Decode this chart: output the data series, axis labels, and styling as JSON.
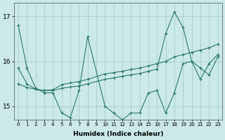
{
  "xlabel": "Humidex (Indice chaleur)",
  "background_color": "#cce8e8",
  "grid_color": "#aacccc",
  "line_color": "#2e7b6e",
  "xlim": [
    -0.5,
    23.5
  ],
  "ylim": [
    14.7,
    17.3
  ],
  "yticks": [
    15,
    16,
    17
  ],
  "xticks": [
    0,
    1,
    2,
    3,
    4,
    5,
    6,
    7,
    8,
    9,
    10,
    11,
    12,
    13,
    14,
    15,
    16,
    17,
    18,
    19,
    20,
    21,
    22,
    23
  ],
  "series1_x": [
    0,
    1,
    2,
    3,
    4,
    5,
    6,
    7,
    8,
    10,
    11,
    12,
    13,
    14,
    15,
    16,
    17,
    18,
    19,
    20,
    21,
    22,
    23
  ],
  "series1_y": [
    16.8,
    15.85,
    15.4,
    15.3,
    15.3,
    14.85,
    14.75,
    15.35,
    16.55,
    15.0,
    14.85,
    14.7,
    14.85,
    14.85,
    15.3,
    15.35,
    14.85,
    15.3,
    15.95,
    16.0,
    15.6,
    15.95,
    16.15
  ],
  "series2_x": [
    0,
    1,
    2,
    3,
    4,
    5,
    6,
    7,
    8,
    10,
    11,
    12,
    13,
    14,
    15,
    16,
    17,
    18,
    19,
    20,
    21,
    22,
    23
  ],
  "series2_y": [
    15.85,
    15.5,
    15.38,
    15.35,
    15.37,
    15.48,
    15.52,
    15.55,
    15.6,
    15.72,
    15.75,
    15.78,
    15.82,
    15.85,
    15.9,
    15.95,
    16.0,
    16.1,
    16.15,
    16.2,
    16.25,
    16.3,
    16.38
  ],
  "series3_x": [
    0,
    1,
    2,
    3,
    4,
    5,
    6,
    7,
    8,
    10,
    11,
    12,
    13,
    14,
    15,
    16,
    17,
    18,
    19,
    20,
    21,
    22,
    23
  ],
  "series3_y": [
    15.5,
    15.42,
    15.38,
    15.35,
    15.35,
    15.4,
    15.43,
    15.45,
    15.5,
    15.6,
    15.63,
    15.67,
    15.7,
    15.73,
    15.78,
    15.83,
    16.62,
    17.1,
    16.75,
    16.0,
    15.85,
    15.7,
    16.1
  ]
}
